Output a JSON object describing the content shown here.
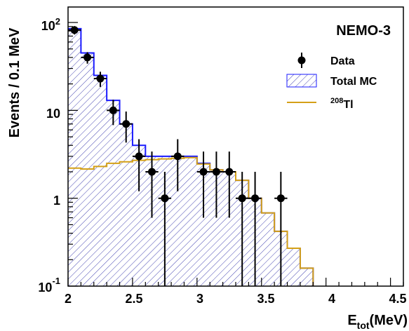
{
  "chart_data": {
    "type": "histogram",
    "experiment_label": "NEMO-3",
    "xlabel": {
      "main": "E",
      "sub": "tot",
      "suffix": "(MeV)"
    },
    "ylabel": "Events / 0.1 MeV",
    "xlim": [
      2,
      4.6
    ],
    "ylim": [
      0.1,
      150
    ],
    "yscale": "log",
    "x_ticks": [
      2,
      2.5,
      3,
      3.5,
      4,
      4.5
    ],
    "x_tick_labels": [
      "2",
      "2.5",
      "3",
      "3.5",
      "4",
      "4.5"
    ],
    "y_tick_labels": [
      {
        "value": 100,
        "base": "10",
        "exp": "2"
      },
      {
        "value": 10,
        "base": "10",
        "exp": ""
      },
      {
        "value": 1,
        "base": "1",
        "exp": ""
      },
      {
        "value": 0.1,
        "base": "10",
        "exp": "-1"
      }
    ],
    "legend": {
      "position": "top-right",
      "entries": [
        {
          "kind": "marker",
          "label": "Data"
        },
        {
          "kind": "hatch",
          "label": "Total MC"
        },
        {
          "kind": "line",
          "sup": "208",
          "label": "Tl"
        }
      ]
    },
    "bin_edges": [
      2.0,
      2.1,
      2.2,
      2.3,
      2.4,
      2.5,
      2.6,
      2.7,
      2.8,
      2.9,
      3.0,
      3.1,
      3.2,
      3.3,
      3.4,
      3.5,
      3.6,
      3.7,
      3.8,
      3.9
    ],
    "series": [
      {
        "name": "Total MC",
        "values": [
          85,
          45,
          25,
          13,
          7,
          4,
          3,
          3,
          3,
          3,
          2.5,
          2.1,
          2.0,
          1.6,
          1.0,
          0.68,
          0.42,
          0.27,
          0.16
        ]
      },
      {
        "name": "Tl",
        "values": [
          2.2,
          2.15,
          2.3,
          2.5,
          2.6,
          2.7,
          2.75,
          2.8,
          2.85,
          2.9,
          2.45,
          2.1,
          2.0,
          1.6,
          1.0,
          0.68,
          0.42,
          0.27,
          0.16
        ]
      },
      {
        "name": "Data",
        "points": [
          {
            "x": 2.05,
            "y": 82,
            "lo": 73,
            "hi": 91
          },
          {
            "x": 2.15,
            "y": 40,
            "lo": 34,
            "hi": 46
          },
          {
            "x": 2.25,
            "y": 23,
            "lo": 18.5,
            "hi": 27.5
          },
          {
            "x": 2.35,
            "y": 10,
            "lo": 6.8,
            "hi": 13.2
          },
          {
            "x": 2.45,
            "y": 7,
            "lo": 4.3,
            "hi": 9.7
          },
          {
            "x": 2.55,
            "y": 3,
            "lo": 1.2,
            "hi": 4.7
          },
          {
            "x": 2.65,
            "y": 2,
            "lo": 0.6,
            "hi": 3.4
          },
          {
            "x": 2.75,
            "y": 1,
            "lo": 0.1,
            "hi": 2.0
          },
          {
            "x": 2.85,
            "y": 3,
            "lo": 1.2,
            "hi": 4.7
          },
          {
            "x": 3.05,
            "y": 2,
            "lo": 0.6,
            "hi": 3.4
          },
          {
            "x": 3.15,
            "y": 2,
            "lo": 0.6,
            "hi": 3.4
          },
          {
            "x": 3.25,
            "y": 2,
            "lo": 0.6,
            "hi": 3.4
          },
          {
            "x": 3.35,
            "y": 1,
            "lo": 0.1,
            "hi": 2.0
          },
          {
            "x": 3.45,
            "y": 1,
            "lo": 0.1,
            "hi": 2.0
          },
          {
            "x": 3.65,
            "y": 1,
            "lo": 0.1,
            "hi": 2.0
          }
        ]
      }
    ],
    "colors": {
      "total_mc_line": "#1a1aff",
      "total_mc_hatch": "#3333aa",
      "tl_line": "#d4a017",
      "data": "#000000"
    }
  }
}
